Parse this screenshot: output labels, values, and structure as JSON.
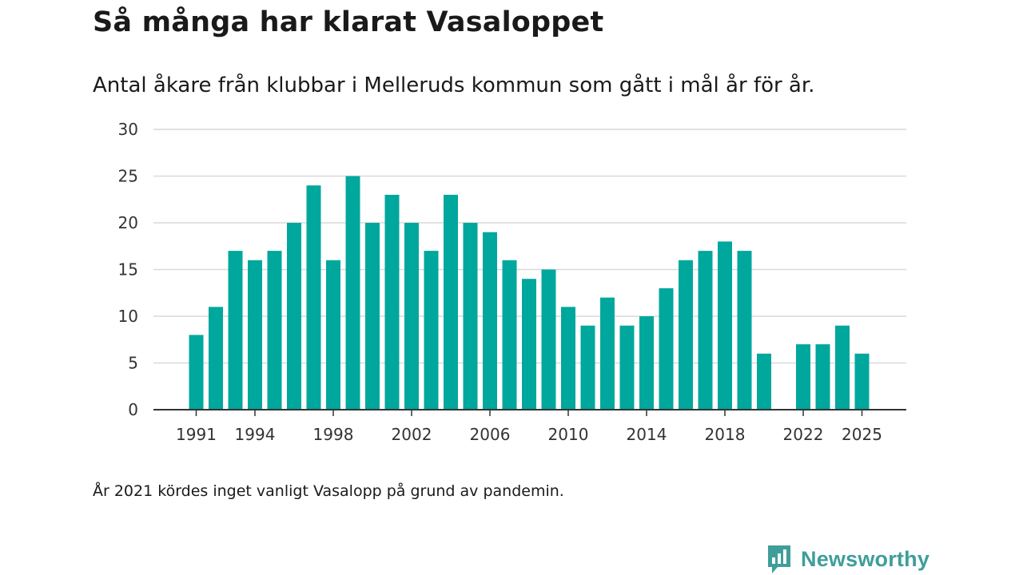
{
  "header": {
    "title": "Så många har klarat Vasaloppet",
    "subtitle": "Antal åkare från klubbar i Melleruds kommun som gått i mål år för år."
  },
  "footnote": "År 2021 kördes inget vanligt Vasalopp på grund av pandemin.",
  "brand": {
    "name": "Newsworthy",
    "icon": "newsworthy-logo-icon",
    "color": "#3f9e9a"
  },
  "chart_data": {
    "type": "bar",
    "title": "Så många har klarat Vasaloppet",
    "subtitle": "Antal åkare från klubbar i Melleruds kommun som gått i mål år för år.",
    "xlabel": "",
    "ylabel": "",
    "ylim": [
      0,
      30
    ],
    "yticks": [
      0,
      5,
      10,
      15,
      20,
      25,
      30
    ],
    "xticks": [
      1991,
      1994,
      1998,
      2002,
      2006,
      2010,
      2014,
      2018,
      2022,
      2025
    ],
    "categories": [
      1991,
      1992,
      1993,
      1994,
      1995,
      1996,
      1997,
      1998,
      1999,
      2000,
      2001,
      2002,
      2003,
      2004,
      2005,
      2006,
      2007,
      2008,
      2009,
      2010,
      2011,
      2012,
      2013,
      2014,
      2015,
      2016,
      2017,
      2018,
      2019,
      2020,
      2021,
      2022,
      2023,
      2024,
      2025
    ],
    "values": [
      8,
      11,
      17,
      16,
      17,
      20,
      24,
      16,
      25,
      20,
      23,
      20,
      17,
      23,
      20,
      19,
      16,
      14,
      15,
      11,
      9,
      12,
      9,
      10,
      13,
      16,
      17,
      18,
      17,
      6,
      null,
      7,
      7,
      9,
      6
    ],
    "bar_color": "#00a79d",
    "grid": true
  }
}
